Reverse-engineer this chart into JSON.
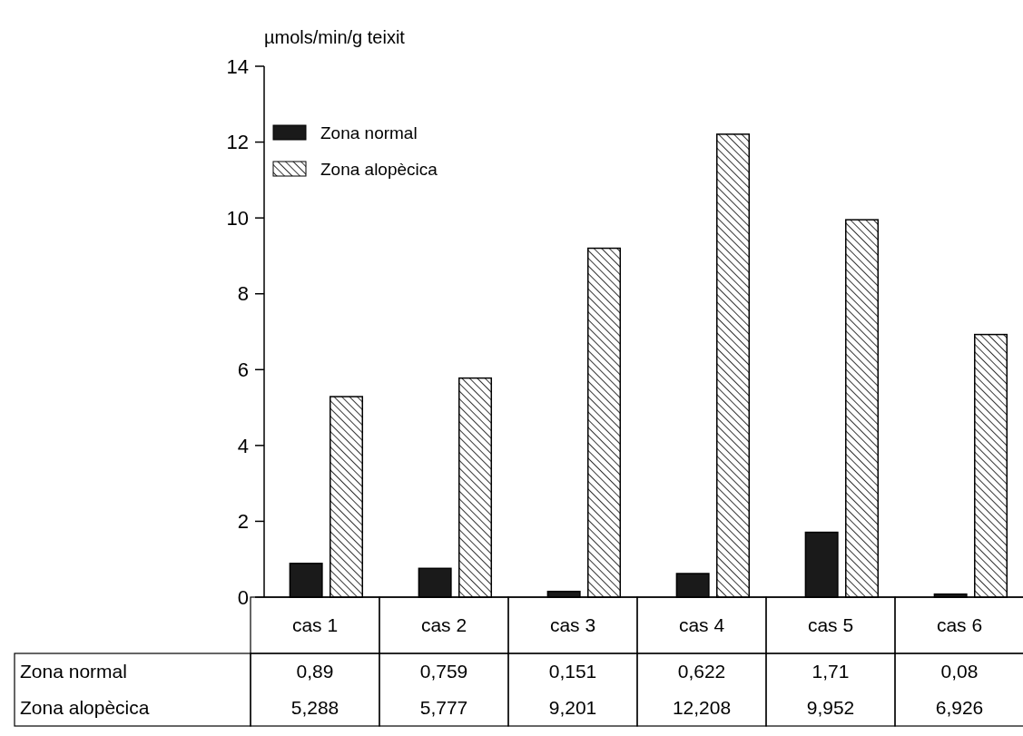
{
  "chart_data": {
    "type": "bar",
    "ylabel": "µmols/min/g teixit",
    "categories": [
      "cas 1",
      "cas 2",
      "cas 3",
      "cas 4",
      "cas 5",
      "cas 6"
    ],
    "series": [
      {
        "name": "Zona normal",
        "color": "#1a1a1a",
        "values": [
          0.89,
          0.759,
          0.151,
          0.622,
          1.71,
          0.08
        ],
        "value_labels": [
          "0,89",
          "0,759",
          "0,151",
          "0,622",
          "1,71",
          "0,08"
        ]
      },
      {
        "name": "Zona alopècica",
        "color": "#000000",
        "values": [
          5.288,
          5.777,
          9.201,
          12.208,
          9.952,
          6.926
        ],
        "value_labels": [
          "5,288",
          "5,777",
          "9,201",
          "12,208",
          "9,952",
          "6,926"
        ]
      }
    ],
    "ylim": [
      0,
      14
    ],
    "yticks": [
      0,
      2,
      4,
      6,
      8,
      10,
      12,
      14
    ],
    "legend": "top left"
  }
}
